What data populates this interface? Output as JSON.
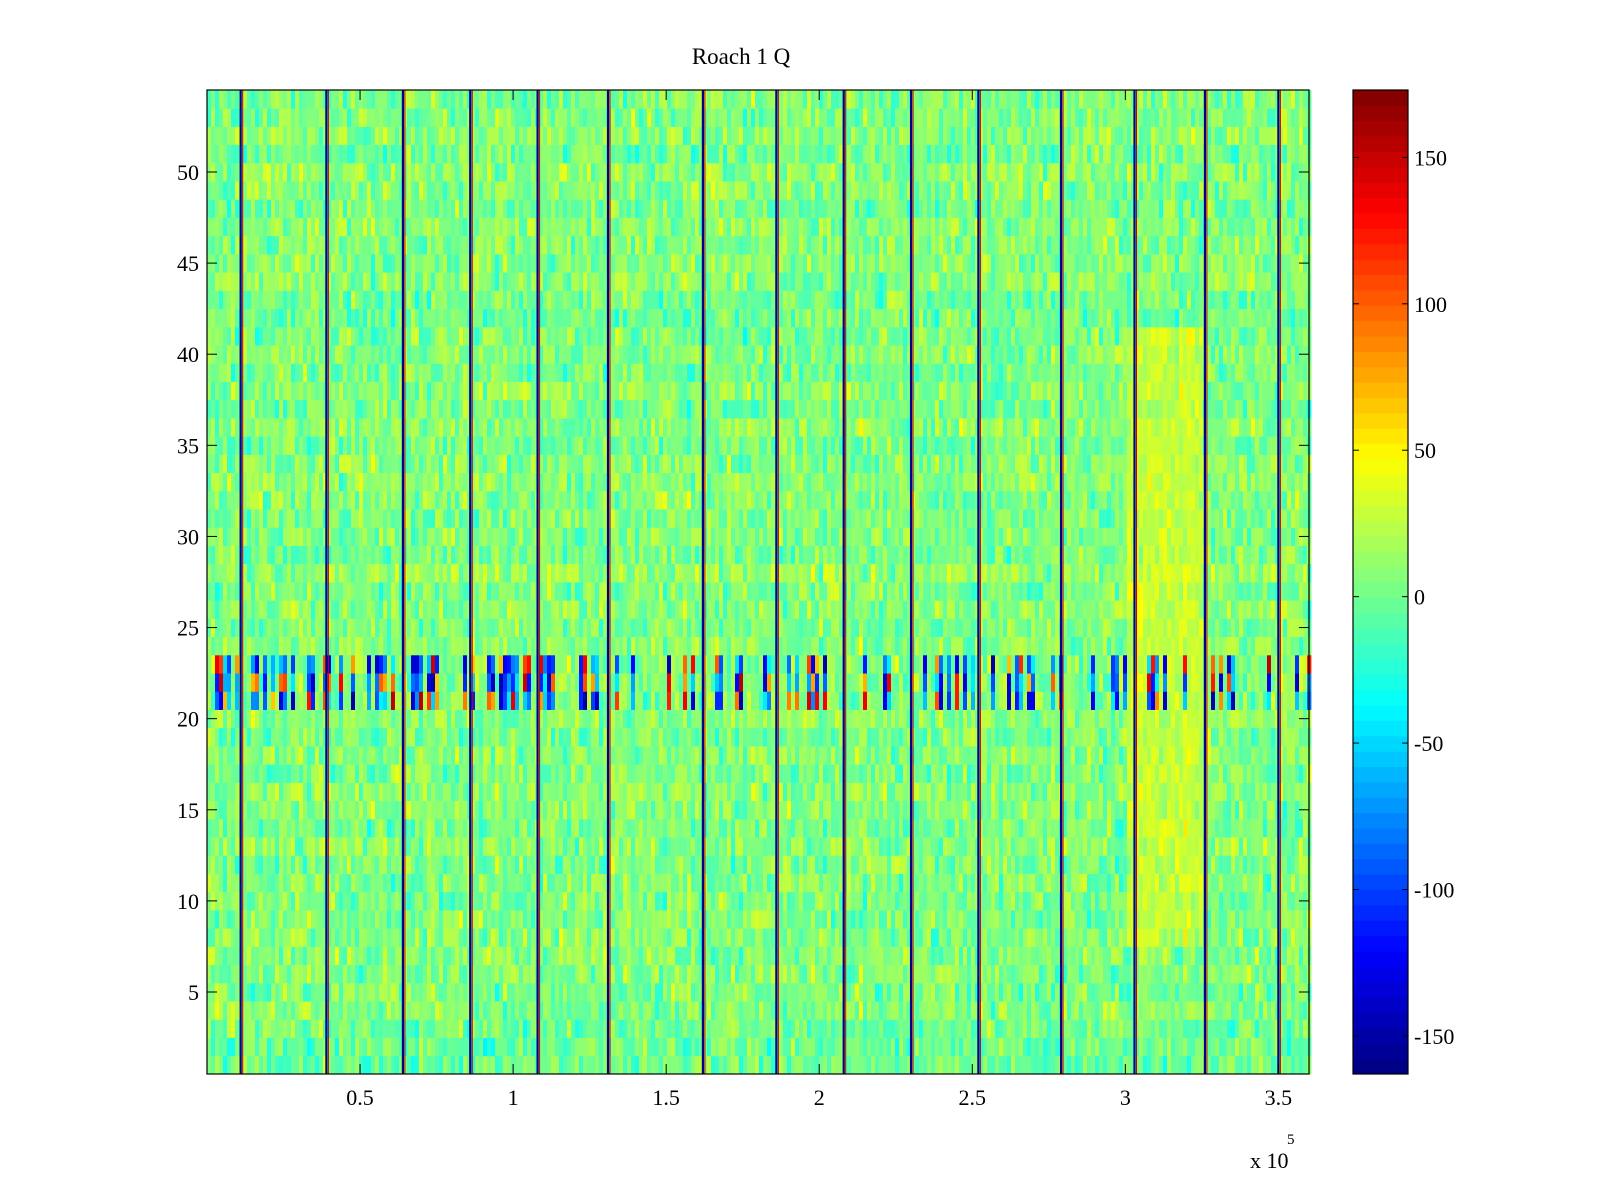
{
  "chart_data": {
    "type": "heatmap",
    "title": "Roach 1 Q",
    "xlabel": "",
    "ylabel": "",
    "x_exponent_label": "x 10",
    "x_exponent_power": "5",
    "xlim": [
      0,
      360000
    ],
    "ylim": [
      0.5,
      54.5
    ],
    "x_ticks": [
      {
        "value": 50000,
        "label": "0.5"
      },
      {
        "value": 100000,
        "label": "1"
      },
      {
        "value": 150000,
        "label": "1.5"
      },
      {
        "value": 200000,
        "label": "2"
      },
      {
        "value": 250000,
        "label": "2.5"
      },
      {
        "value": 300000,
        "label": "3"
      },
      {
        "value": 350000,
        "label": "3.5"
      }
    ],
    "y_ticks": [
      {
        "value": 5,
        "label": "5"
      },
      {
        "value": 10,
        "label": "10"
      },
      {
        "value": 15,
        "label": "15"
      },
      {
        "value": 20,
        "label": "20"
      },
      {
        "value": 25,
        "label": "25"
      },
      {
        "value": 30,
        "label": "30"
      },
      {
        "value": 35,
        "label": "35"
      },
      {
        "value": 40,
        "label": "40"
      },
      {
        "value": 45,
        "label": "45"
      },
      {
        "value": 50,
        "label": "50"
      }
    ],
    "colorbar": {
      "colormap": "jet",
      "clim": [
        -163,
        173
      ],
      "ticks": [
        {
          "value": -150,
          "label": "-150"
        },
        {
          "value": -100,
          "label": "-100"
        },
        {
          "value": -50,
          "label": "-50"
        },
        {
          "value": 0,
          "label": "0"
        },
        {
          "value": 50,
          "label": "50"
        },
        {
          "value": 100,
          "label": "100"
        },
        {
          "value": 150,
          "label": "150"
        }
      ]
    },
    "rows": 54,
    "background_mean": 5,
    "background_spread": 14,
    "boundary_x": [
      11000,
      39000,
      64000,
      86000,
      108000,
      131000,
      162000,
      186000,
      208000,
      230000,
      252000,
      279000,
      303000,
      326000,
      350000
    ],
    "anomaly_rows": [
      21,
      22,
      23
    ],
    "anomaly_value_range": [
      -150,
      160
    ],
    "warm_region": {
      "x_range": [
        300000,
        325000
      ],
      "y_range": [
        8,
        41
      ],
      "value": 40
    }
  }
}
